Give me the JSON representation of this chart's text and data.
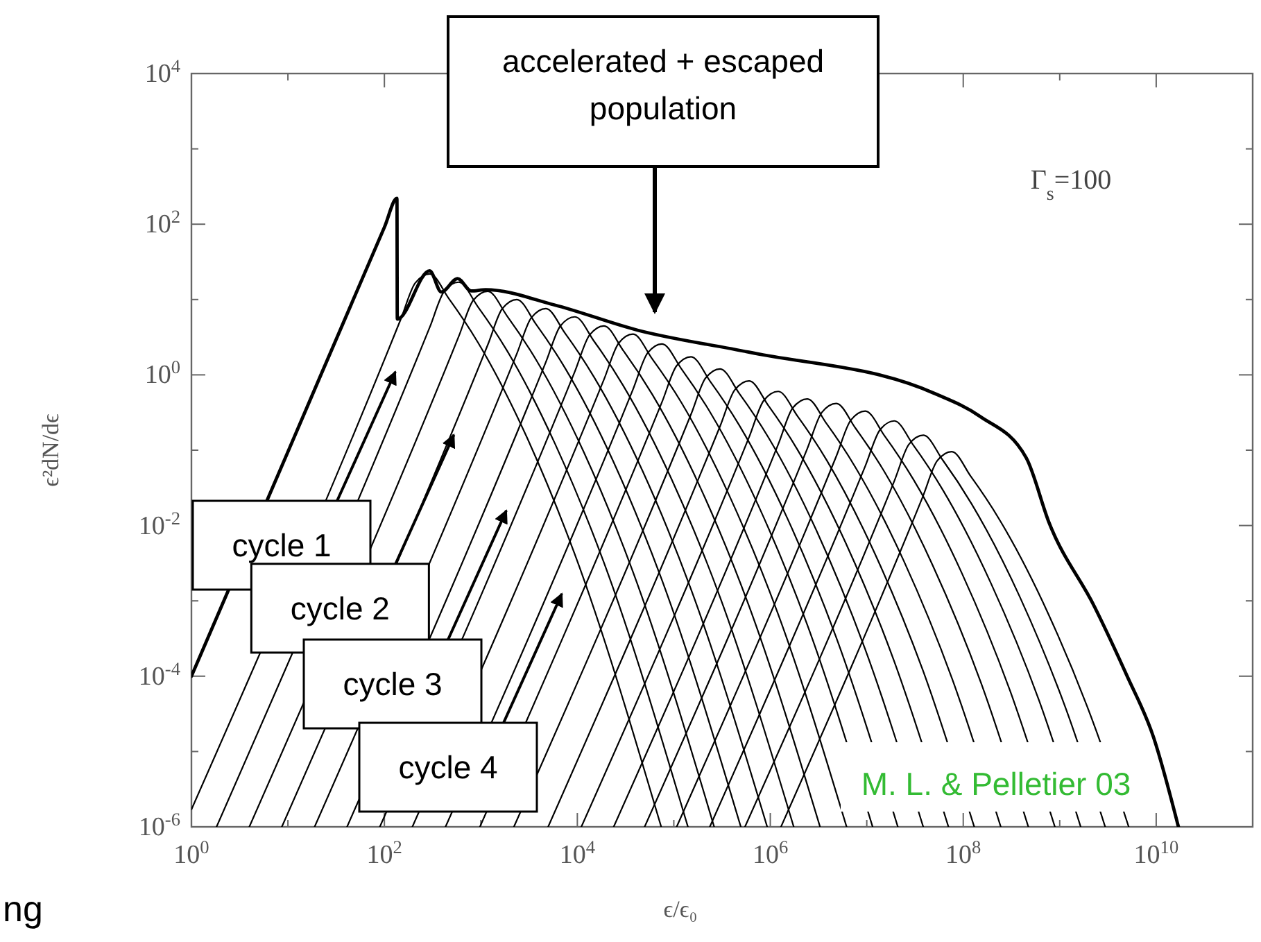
{
  "chart_data": {
    "type": "line",
    "xlabel": "ϵ/ϵ₀",
    "ylabel": "ϵ²dN/dϵ",
    "log": "xy",
    "xlim": [
      1,
      100000000000.0
    ],
    "ylim": [
      1e-06,
      10000.0
    ],
    "xticks": [
      {
        "value": 1,
        "label": "10$^{0}$"
      },
      {
        "value": 10,
        "label": null
      },
      {
        "value": 100,
        "label": "10$^{2}$"
      },
      {
        "value": 1000,
        "label": null
      },
      {
        "value": 10000,
        "label": "10$^{4}$"
      },
      {
        "value": 100000,
        "label": null
      },
      {
        "value": 1000000,
        "label": "10$^{6}$"
      },
      {
        "value": 10000000,
        "label": null
      },
      {
        "value": 100000000,
        "label": "10$^{8}$"
      },
      {
        "value": 1000000000,
        "label": null
      },
      {
        "value": 10000000000,
        "label": "10$^{10}$"
      }
    ],
    "yticks": [
      {
        "value": 1e-06,
        "label": "10$^{-6}$"
      },
      {
        "value": 1e-05,
        "label": null
      },
      {
        "value": 0.0001,
        "label": "10$^{-4}$"
      },
      {
        "value": 0.001,
        "label": null
      },
      {
        "value": 0.01,
        "label": "10$^{-2}$"
      },
      {
        "value": 0.1,
        "label": null
      },
      {
        "value": 1,
        "label": "10$^{0}$"
      },
      {
        "value": 10,
        "label": null
      },
      {
        "value": 100,
        "label": "10$^{2}$"
      },
      {
        "value": 1000,
        "label": null
      },
      {
        "value": 10000,
        "label": "10$^{4}$"
      }
    ],
    "series": [
      {
        "color": "#000000",
        "x": [
          1,
          10,
          100,
          135,
          136,
          295,
          389,
          575,
          794,
          1120,
          5750,
          42700,
          600000,
          49000000,
          150000000,
          450000000,
          780000000,
          2300000000,
          5000000000,
          9300000000,
          17000000000
        ],
        "values": [
          0.0001,
          0.095,
          91,
          220,
          5.5,
          24,
          12.6,
          19,
          13,
          13.5,
          8.5,
          3.9,
          2.0,
          0.575,
          0.28,
          0.079,
          0.0107,
          0.00083,
          0.0001,
          1.6e-05,
          1e-06
        ]
      },
      {
        "color": "#000000",
        "x": [
          1,
          148,
          209,
          295,
          468,
          933,
          2950,
          9330,
          74000
        ],
        "values": [
          1.7e-06,
          5.5,
          16.6,
          21.9,
          10.2,
          2.69,
          0.155,
          0.00427,
          1e-06
        ]
      },
      {
        "color": "#000000",
        "x": [
          1.82,
          295,
          418,
          590,
          935,
          1870,
          5900,
          18700,
          140000
        ],
        "values": [
          1e-06,
          4.27,
          12.9,
          17.0,
          7.96,
          2.09,
          0.12,
          0.00332,
          1e-06
        ]
      },
      {
        "color": "#000000",
        "x": [
          3.98,
          590,
          835,
          1180,
          1870,
          3730,
          11800,
          37300,
          262000
        ],
        "values": [
          1e-06,
          3.24,
          9.79,
          12.9,
          6.04,
          1.59,
          0.0913,
          0.00252,
          1e-06
        ]
      },
      {
        "color": "#000000",
        "x": [
          8.65,
          1180,
          1670,
          2360,
          3740,
          7460,
          23600,
          74600,
          495000
        ],
        "values": [
          1e-06,
          2.51,
          7.59,
          10,
          4.68,
          1.23,
          0.0708,
          0.00195,
          1e-06
        ]
      },
      {
        "color": "#000000",
        "x": [
          18.9,
          2360,
          3340,
          4720,
          7480,
          14900,
          47200,
          149000,
          929000
        ],
        "values": [
          1e-06,
          1.91,
          5.76,
          7.59,
          3.55,
          0.934,
          0.0537,
          0.00148,
          1e-06
        ]
      },
      {
        "color": "#000000",
        "x": [
          41,
          4720,
          6680,
          9440,
          15000,
          29800,
          94400,
          299000,
          1750000
        ],
        "values": [
          1e-06,
          1.48,
          4.47,
          5.89,
          2.76,
          0.724,
          0.0417,
          0.00115,
          1e-06
        ]
      },
      {
        "color": "#000000",
        "x": [
          89.7,
          9450,
          13400,
          18900,
          30000,
          59800,
          189000,
          598000,
          3280000
        ],
        "values": [
          1e-06,
          1.12,
          3.39,
          4.47,
          2.09,
          0.55,
          0.0316,
          0.000872,
          1e-06
        ]
      },
      {
        "color": "#000000",
        "x": [
          195,
          18900,
          26800,
          37800,
          59900,
          120000,
          378000,
          1200000,
          6180000
        ],
        "values": [
          1e-06,
          0.871,
          2.63,
          3.47,
          1.62,
          0.427,
          0.0246,
          0.000677,
          1e-06
        ]
      },
      {
        "color": "#000000",
        "x": [
          430,
          37800,
          53500,
          75500,
          120000,
          239000,
          755000,
          2390000,
          11500000
        ],
        "values": [
          1e-06,
          0.645,
          1.95,
          2.57,
          1.2,
          0.316,
          0.0182,
          0.000501,
          1e-06
        ]
      },
      {
        "color": "#000000",
        "x": [
          977,
          75500,
          107000,
          151000,
          239000,
          477000,
          1510000,
          4770000,
          21000000
        ],
        "values": [
          1e-06,
          0.437,
          1.32,
          1.74,
          0.814,
          0.214,
          0.0123,
          0.000339,
          1e-06
        ]
      },
      {
        "color": "#000000",
        "x": [
          2200,
          151000,
          214000,
          302000,
          479000,
          955000,
          3020000,
          9550000,
          38500000
        ],
        "values": [
          1e-06,
          0.301,
          0.911,
          1.2,
          0.562,
          0.148,
          0.0085,
          0.000234,
          1e-06
        ]
      },
      {
        "color": "#000000",
        "x": [
          4980,
          302000,
          428000,
          604000,
          957000,
          1910000,
          6040000,
          19100000,
          70300000
        ],
        "values": [
          1e-06,
          0.209,
          0.631,
          0.832,
          0.389,
          0.102,
          0.00589,
          0.000162,
          1e-06
        ]
      },
      {
        "color": "#000000",
        "x": [
          11000,
          605000,
          857000,
          1210000,
          1920000,
          3830000,
          12100000,
          38300000,
          130000000
        ],
        "values": [
          1e-06,
          0.151,
          0.458,
          0.603,
          0.282,
          0.0742,
          0.00427,
          0.000118,
          1e-06
        ]
      },
      {
        "color": "#000000",
        "x": [
          23800,
          1210000,
          1710000,
          2420000,
          3840000,
          7650000,
          24200000,
          76500000,
          245000000
        ],
        "values": [
          1e-06,
          0.12,
          0.364,
          0.479,
          0.224,
          0.0589,
          0.00339,
          9.34e-05,
          1e-06
        ]
      },
      {
        "color": "#000000",
        "x": [
          49800,
          2420000,
          3420000,
          4830000,
          7660000,
          15300000,
          48300000,
          153000000,
          473000000
        ],
        "values": [
          1e-06,
          0.105,
          0.317,
          0.417,
          0.195,
          0.0513,
          0.00295,
          8.13e-05,
          1e-06
        ]
      },
      {
        "color": "#000000",
        "x": [
          107000,
          4830000,
          6840000,
          9660000,
          15300000,
          30500000,
          96600000,
          305000000,
          891000000
        ],
        "values": [
          1e-06,
          0.0831,
          0.251,
          0.331,
          0.155,
          0.0407,
          0.00234,
          6.45e-05,
          1e-06
        ]
      },
      {
        "color": "#000000",
        "x": [
          236000,
          9650000,
          13700000,
          19300000,
          30600000,
          61000000,
          193000000,
          610000000,
          1650000000
        ],
        "values": [
          1e-06,
          0.0615,
          0.186,
          0.245,
          0.115,
          0.0301,
          0.00173,
          4.78e-05,
          1e-06
        ]
      },
      {
        "color": "#000000",
        "x": [
          546000,
          19400000,
          27400000,
          38700000,
          61300000,
          122000000,
          387000000,
          1220000000,
          2960000000
        ],
        "values": [
          1e-06,
          0.0397,
          0.12,
          0.158,
          0.0739,
          0.0194,
          0.00112,
          3.08e-05,
          1e-06
        ]
      },
      {
        "color": "#000000",
        "x": [
          1290000,
          38000000,
          53800000,
          76000000,
          120000000,
          240000000,
          760000000,
          2400000000,
          5190000000
        ],
        "values": [
          1e-06,
          0.024,
          0.0725,
          0.0955,
          0.0447,
          0.0117,
          0.000676,
          1.86e-05,
          1e-06
        ]
      }
    ],
    "annotations": [
      "accelerated + escaped population",
      "cycle 1",
      {
        "text": "cycle 2",
        "x": 525,
        "y": 0.16
      },
      "cycle 3",
      "cycle 4",
      "Γ$_{s}$=100",
      "M. L. & Pelletier 03",
      "ng"
    ]
  }
}
